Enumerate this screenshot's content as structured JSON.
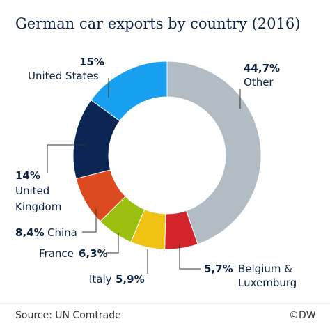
{
  "chart_data": {
    "type": "donut",
    "title": "German car exports by country (2016)",
    "source": "Source: UN Comtrade",
    "credit": "©DW",
    "categories": [
      "Other",
      "Belgium & Luxemburg",
      "Italy",
      "France",
      "China",
      "United Kingdom",
      "United States"
    ],
    "values": [
      44.7,
      5.7,
      5.9,
      6.3,
      8.4,
      14,
      15
    ],
    "value_labels": [
      "44,7%",
      "5,7%",
      "5,9%",
      "6,3%",
      "8,4%",
      "14%",
      "15%"
    ],
    "colors": [
      "#b2bcc5",
      "#d3242c",
      "#f0c313",
      "#9cc00f",
      "#dc4a1f",
      "#0b2654",
      "#189ff0"
    ]
  }
}
